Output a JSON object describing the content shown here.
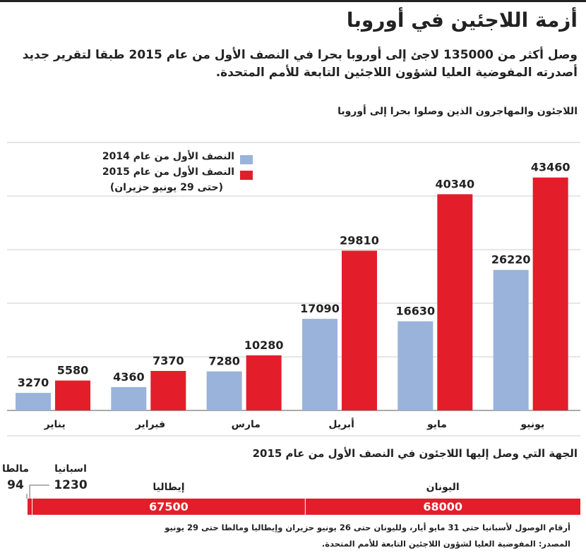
{
  "header": {
    "title": "أزمة اللاجئين في أوروبا",
    "intro": "وصل أكثر من 135000 لاجئ إلى أوروبا بحرا في النصف الأول من عام 2015 طبقا لتقرير جديد أصدرته المفوضية العليا لشؤون اللاجئين التابعة للأمم المتحدة."
  },
  "chart_data": [
    {
      "type": "bar",
      "title": "اللاجئون والمهاجرون الذين وصلوا بحرا إلى أوروبا",
      "categories": [
        "يناير",
        "فبراير",
        "مارس",
        "أبريل",
        "مايو",
        "يونيو"
      ],
      "series": [
        {
          "name": "النصف الأول من عام 2014",
          "color": "#9ab3da",
          "values": [
            3270,
            4360,
            7280,
            17090,
            16630,
            26220
          ]
        },
        {
          "name": "النصف الأول من عام 2015",
          "color": "#e31e2a",
          "values": [
            5580,
            7370,
            10280,
            29810,
            40340,
            43460
          ]
        }
      ],
      "legend_note": "(حتى 29 يونيو حزيران)",
      "ylim": [
        0,
        50000
      ],
      "yticks": [
        10000,
        20000,
        30000,
        40000,
        50000
      ],
      "grid": true
    },
    {
      "type": "stacked-bar",
      "title": "الجهة التي وصل إليها اللاجئون في النصف الأول من عام 2015",
      "categories": [
        "اليونان",
        "إيطاليا",
        "اسبانيا",
        "مالطا"
      ],
      "values": [
        68000,
        67500,
        1230,
        94
      ],
      "color": "#e31e2a"
    }
  ],
  "footer": {
    "note": "أرقام الوصول لأسبانيا حتى 31 مايو أيار، ولليونان حتى 26 يونيو حزيران وإيطاليا ومالطا حتى 29 يونيو",
    "source": "المصدر: المفوضية العليا لشؤون اللاجئين التابعة للأمم المتحدة."
  }
}
